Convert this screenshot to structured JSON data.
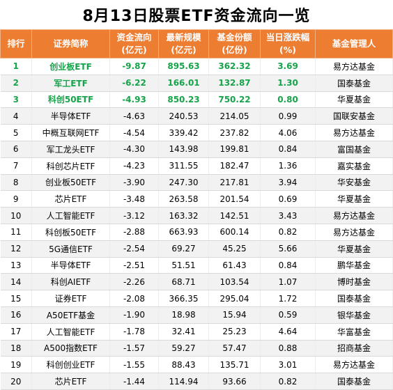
{
  "title": "8月13日股票ETF资金流向一览",
  "headers": [
    {
      "line1": "排行",
      "line2": ""
    },
    {
      "line1": "证券简称",
      "line2": ""
    },
    {
      "line1": "资金流向",
      "line2": "(亿元)"
    },
    {
      "line1": "最新规模",
      "line2": "(亿元)"
    },
    {
      "line1": "基金份额",
      "line2": "(亿份)"
    },
    {
      "line1": "当日涨跌幅",
      "line2": "(%)"
    },
    {
      "line1": "基金管理人",
      "line2": ""
    }
  ],
  "rows": [
    [
      "1",
      "创业板ETF",
      "-9.87",
      "895.63",
      "362.32",
      "3.69",
      "易方达基金"
    ],
    [
      "2",
      "军工ETF",
      "-6.22",
      "166.01",
      "132.87",
      "1.30",
      "国泰基金"
    ],
    [
      "3",
      "科创50ETF",
      "-4.93",
      "850.23",
      "750.22",
      "0.80",
      "华夏基金"
    ],
    [
      "4",
      "半导体ETF",
      "-4.63",
      "240.53",
      "214.05",
      "0.99",
      "国联安基金"
    ],
    [
      "5",
      "中概互联网ETF",
      "-4.54",
      "339.42",
      "237.82",
      "4.06",
      "易方达基金"
    ],
    [
      "6",
      "军工龙头ETF",
      "-4.30",
      "143.98",
      "199.81",
      "0.84",
      "富国基金"
    ],
    [
      "7",
      "科创芯片ETF",
      "-4.23",
      "311.55",
      "182.47",
      "1.36",
      "嘉实基金"
    ],
    [
      "8",
      "创业板50ETF",
      "-3.90",
      "247.30",
      "217.81",
      "3.94",
      "华安基金"
    ],
    [
      "9",
      "芯片ETF",
      "-3.48",
      "263.58",
      "201.54",
      "0.69",
      "华夏基金"
    ],
    [
      "10",
      "人工智能ETF",
      "-3.12",
      "163.32",
      "142.51",
      "3.43",
      "易方达基金"
    ],
    [
      "11",
      "科创板50ETF",
      "-2.88",
      "663.93",
      "600.14",
      "0.82",
      "易方达基金"
    ],
    [
      "12",
      "5G通信ETF",
      "-2.54",
      "69.27",
      "45.25",
      "5.66",
      "华夏基金"
    ],
    [
      "13",
      "半导体ETF",
      "-2.51",
      "51.51",
      "61.43",
      "0.84",
      "鹏华基金"
    ],
    [
      "14",
      "科创AIETF",
      "-2.26",
      "68.71",
      "103.54",
      "1.07",
      "博时基金"
    ],
    [
      "15",
      "证券ETF",
      "-2.08",
      "366.35",
      "295.04",
      "1.72",
      "国泰基金"
    ],
    [
      "16",
      "A50ETF基金",
      "-1.90",
      "18.98",
      "15.94",
      "0.59",
      "银华基金"
    ],
    [
      "17",
      "人工智能ETF",
      "-1.78",
      "32.41",
      "25.23",
      "4.64",
      "华富基金"
    ],
    [
      "18",
      "A500指数ETF",
      "-1.57",
      "59.27",
      "57.47",
      "0.88",
      "招商基金"
    ],
    [
      "19",
      "科创创业ETF",
      "-1.55",
      "88.43",
      "135.71",
      "3.01",
      "易方达基金"
    ],
    [
      "20",
      "芯片ETF",
      "-1.44",
      "114.94",
      "93.66",
      "0.82",
      "国泰基金"
    ]
  ],
  "colors": {
    "header_bg": "#ed7d31",
    "header_text": "#ffffff",
    "top3_text": "#16a34a",
    "stripe": "#f2f2f2"
  }
}
